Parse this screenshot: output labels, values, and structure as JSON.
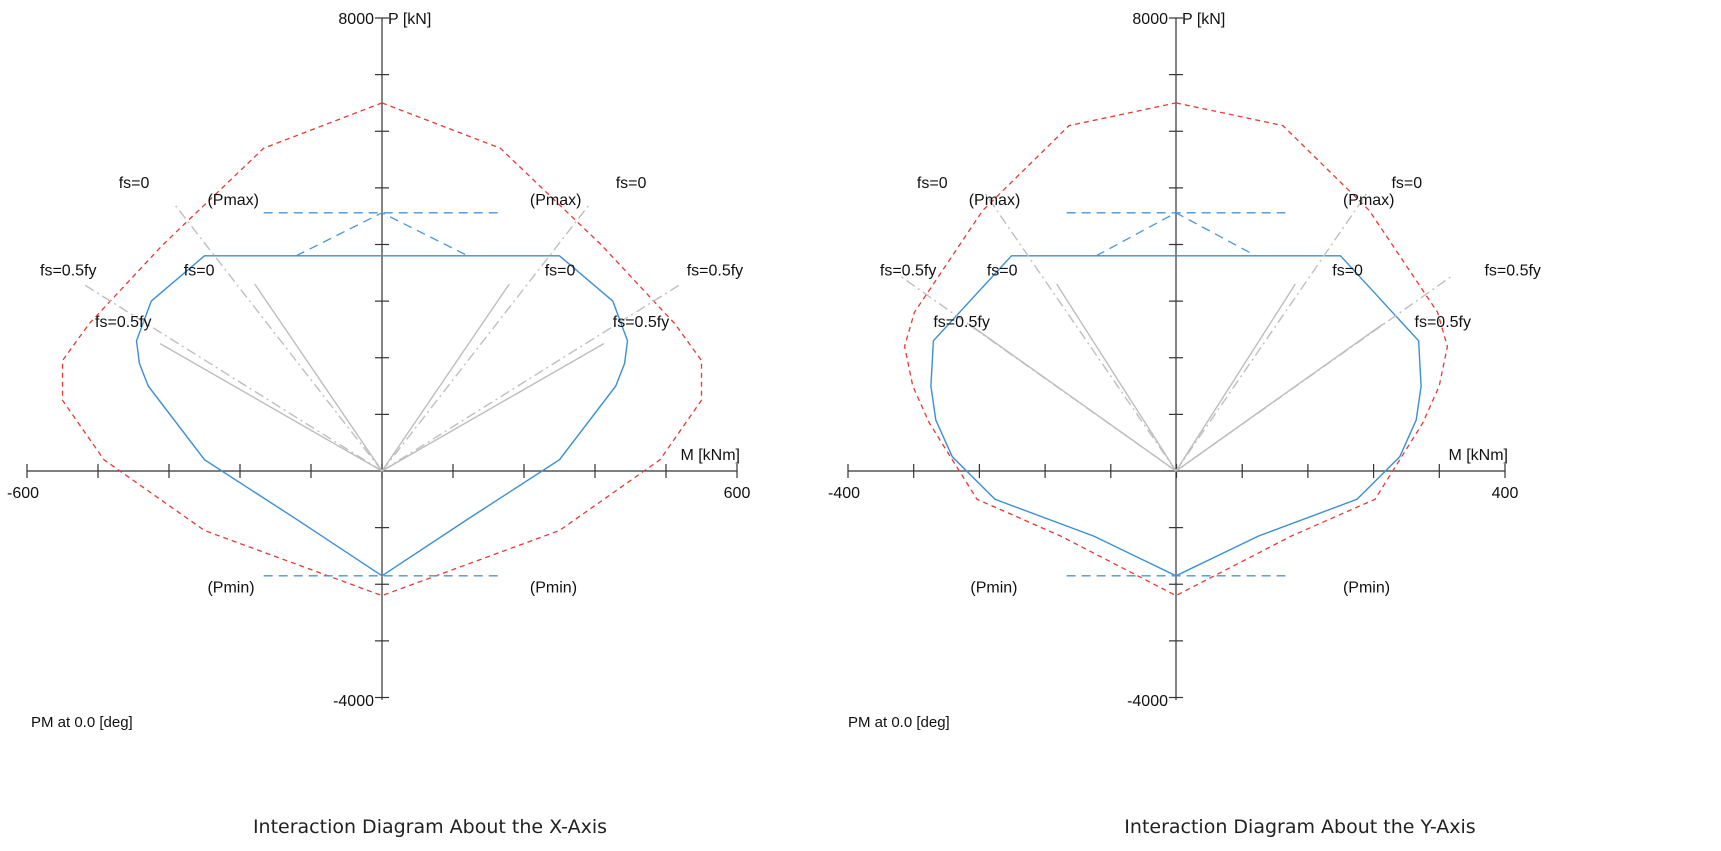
{
  "chart_data": [
    {
      "type": "line",
      "title": "Interaction Diagram About the X-Axis",
      "subtitle": "PM at 0.0 [deg]",
      "xlabel": "M [kNm]",
      "ylabel": "P [kN]",
      "xlim": [
        -600,
        600
      ],
      "ylim": [
        -4000,
        8000
      ],
      "x_tick_labels": [
        "-600",
        "600"
      ],
      "y_tick_labels": [
        "8000",
        "-4000"
      ],
      "colors": {
        "nominal": "#e53935",
        "design": "#3b8fd4",
        "cap": "#4a96d6",
        "ref_solid": "#bdbdbd",
        "ref_dash": "#bfbfbf",
        "axis": "#333333"
      },
      "series": [
        {
          "style": "nominal",
          "x": [
            0,
            200,
            370,
            495,
            540,
            540,
            470,
            300,
            0,
            -300,
            -470,
            -540,
            -540,
            -495,
            -370,
            -200,
            0
          ],
          "y": [
            6500,
            5700,
            4000,
            2600,
            1950,
            1250,
            200,
            -1050,
            -2200,
            -1050,
            200,
            1250,
            1950,
            2600,
            4000,
            5700,
            6500
          ]
        },
        {
          "style": "design",
          "x": [
            0,
            300,
            390,
            415,
            410,
            395,
            300,
            145,
            0,
            -145,
            -300,
            -395,
            -410,
            -415,
            -390,
            -300,
            0
          ],
          "y": [
            3800,
            3800,
            3000,
            2300,
            1900,
            1500,
            200,
            -850,
            -1850,
            -850,
            200,
            1500,
            1900,
            2300,
            3000,
            3800,
            3800
          ]
        },
        {
          "style": "cap",
          "x": [
            -200,
            200
          ],
          "y": [
            4560,
            4560
          ]
        },
        {
          "style": "cap",
          "x": [
            -200,
            200
          ],
          "y": [
            -1850,
            -1850
          ]
        },
        {
          "style": "cap",
          "x": [
            -145,
            0,
            145
          ],
          "y": [
            3800,
            4560,
            3800
          ]
        },
        {
          "style": "ref_dash",
          "x": [
            0,
            350
          ],
          "y": [
            0,
            4700
          ]
        },
        {
          "style": "ref_dash",
          "x": [
            0,
            -350
          ],
          "y": [
            0,
            4700
          ]
        },
        {
          "style": "ref_dash",
          "x": [
            0,
            505
          ],
          "y": [
            0,
            3300
          ]
        },
        {
          "style": "ref_dash",
          "x": [
            0,
            -505
          ],
          "y": [
            0,
            3300
          ]
        },
        {
          "style": "ref_solid",
          "x": [
            0,
            215
          ],
          "y": [
            0,
            3300
          ]
        },
        {
          "style": "ref_solid",
          "x": [
            0,
            -215
          ],
          "y": [
            0,
            3300
          ]
        },
        {
          "style": "ref_solid",
          "x": [
            0,
            375
          ],
          "y": [
            0,
            2250
          ]
        },
        {
          "style": "ref_solid",
          "x": [
            0,
            -375
          ],
          "y": [
            0,
            2250
          ]
        }
      ],
      "annotations": [
        {
          "text": "fs=0",
          "x": -445,
          "y": 5000
        },
        {
          "text": "(Pmax)",
          "x": -295,
          "y": 4700
        },
        {
          "text": "fs=0.5fy",
          "x": -578,
          "y": 3450
        },
        {
          "text": "fs=0",
          "x": -335,
          "y": 3450
        },
        {
          "text": "fs=0.5fy",
          "x": -485,
          "y": 2540
        },
        {
          "text": "fs=0",
          "x": 395,
          "y": 5000
        },
        {
          "text": "(Pmax)",
          "x": 250,
          "y": 4700
        },
        {
          "text": "fs=0.5fy",
          "x": 515,
          "y": 3450
        },
        {
          "text": "fs=0",
          "x": 275,
          "y": 3450
        },
        {
          "text": "fs=0.5fy",
          "x": 390,
          "y": 2540
        },
        {
          "text": "(Pmin)",
          "x": -295,
          "y": -2150
        },
        {
          "text": "(Pmin)",
          "x": 250,
          "y": -2150
        }
      ]
    },
    {
      "type": "line",
      "title": "Interaction Diagram About the Y-Axis",
      "subtitle": "PM at 0.0 [deg]",
      "xlabel": "M [kNm]",
      "ylabel": "P [kN]",
      "xlim": [
        -400,
        400
      ],
      "ylim": [
        -4000,
        8000
      ],
      "x_tick_labels": [
        "-400",
        "400"
      ],
      "y_tick_labels": [
        "8000",
        "-4000"
      ],
      "colors": {
        "nominal": "#e53935",
        "design": "#3b8fd4",
        "cap": "#4a96d6",
        "ref_solid": "#bdbdbd",
        "ref_dash": "#bfbfbf",
        "axis": "#333333"
      },
      "series": [
        {
          "style": "nominal",
          "x": [
            0,
            130,
            235,
            318,
            330,
            320,
            300,
            242,
            140,
            0,
            -140,
            -242,
            -300,
            -320,
            -330,
            -318,
            -235,
            -130,
            0
          ],
          "y": [
            6500,
            6100,
            4600,
            2800,
            2200,
            1500,
            850,
            -500,
            -1150,
            -2200,
            -1150,
            -500,
            850,
            1500,
            2200,
            2800,
            4600,
            6100,
            6500
          ]
        },
        {
          "style": "design",
          "x": [
            0,
            200,
            295,
            298,
            292,
            272,
            220,
            100,
            0,
            -100,
            -220,
            -272,
            -292,
            -298,
            -295,
            -200,
            0
          ],
          "y": [
            3800,
            3800,
            2300,
            1500,
            900,
            250,
            -500,
            -1150,
            -1850,
            -1150,
            -500,
            250,
            900,
            1500,
            2300,
            3800,
            3800
          ]
        },
        {
          "style": "cap",
          "x": [
            -133,
            133
          ],
          "y": [
            4560,
            4560
          ]
        },
        {
          "style": "cap",
          "x": [
            -133,
            133
          ],
          "y": [
            -1850,
            -1850
          ]
        },
        {
          "style": "cap",
          "x": [
            -97,
            0,
            97
          ],
          "y": [
            3800,
            4560,
            3800
          ]
        },
        {
          "style": "ref_dash",
          "x": [
            0,
            232
          ],
          "y": [
            0,
            4900
          ]
        },
        {
          "style": "ref_dash",
          "x": [
            0,
            -232
          ],
          "y": [
            0,
            4900
          ]
        },
        {
          "style": "ref_dash",
          "x": [
            0,
            336
          ],
          "y": [
            0,
            3450
          ]
        },
        {
          "style": "ref_dash",
          "x": [
            0,
            -336
          ],
          "y": [
            0,
            3450
          ]
        },
        {
          "style": "ref_solid",
          "x": [
            0,
            145
          ],
          "y": [
            0,
            3300
          ]
        },
        {
          "style": "ref_solid",
          "x": [
            0,
            -145
          ],
          "y": [
            0,
            3300
          ]
        },
        {
          "style": "ref_solid",
          "x": [
            0,
            252
          ],
          "y": [
            0,
            2600
          ]
        },
        {
          "style": "ref_solid",
          "x": [
            0,
            -252
          ],
          "y": [
            0,
            2600
          ]
        }
      ],
      "annotations": [
        {
          "text": "fs=0",
          "x": -315,
          "y": 5000
        },
        {
          "text": "(Pmax)",
          "x": -252,
          "y": 4700
        },
        {
          "text": "fs=0.5fy",
          "x": -360,
          "y": 3450
        },
        {
          "text": "fs=0",
          "x": -230,
          "y": 3450
        },
        {
          "text": "fs=0.5fy",
          "x": -295,
          "y": 2540
        },
        {
          "text": "fs=0",
          "x": 262,
          "y": 5000
        },
        {
          "text": "(Pmax)",
          "x": 203,
          "y": 4700
        },
        {
          "text": "fs=0.5fy",
          "x": 375,
          "y": 3450
        },
        {
          "text": "fs=0",
          "x": 190,
          "y": 3450
        },
        {
          "text": "fs=0.5fy",
          "x": 290,
          "y": 2540
        },
        {
          "text": "(Pmin)",
          "x": -250,
          "y": -2150
        },
        {
          "text": "(Pmin)",
          "x": 203,
          "y": -2150
        }
      ]
    }
  ]
}
